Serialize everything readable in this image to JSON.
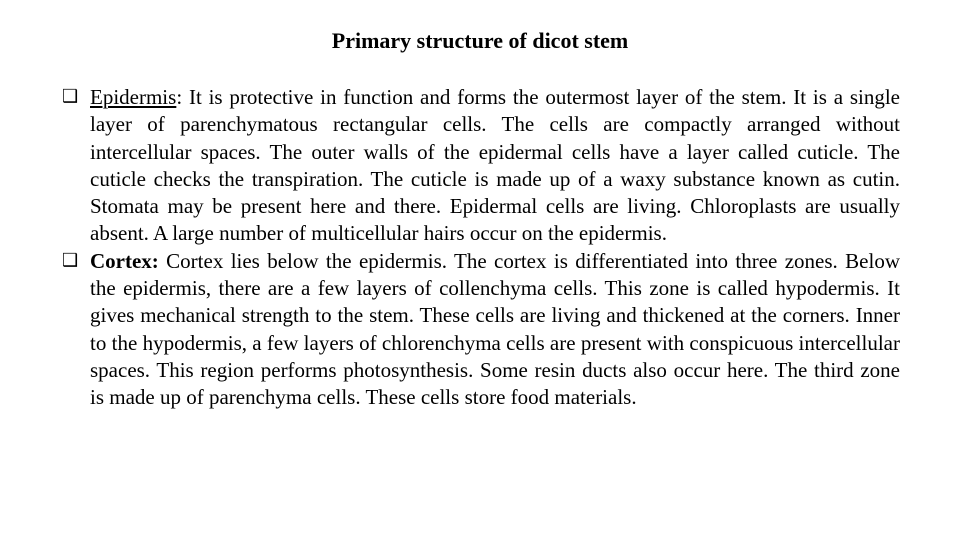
{
  "title": "Primary structure of dicot stem",
  "items": [
    {
      "term": "Epidermis",
      "term_style": "underline",
      "body": ": It is protective in function and forms the outermost layer of the stem. It is a single layer of parenchymatous rectangular cells. The cells are compactly arranged without intercellular spaces. The outer walls of the epidermal cells have a layer called cuticle. The cuticle checks the transpiration. The cuticle is made up of a waxy substance known as cutin. Stomata may be present here and there. Epidermal cells are living. Chloroplasts are usually absent. A large number of multicellular hairs occur on the epidermis."
    },
    {
      "term": "Cortex:",
      "term_style": "bold",
      "body": " Cortex lies below the epidermis. The cortex is differentiated into three zones. Below the epidermis, there are a few layers of collenchyma cells. This zone is called hypodermis. It gives mechanical strength to the stem. These cells are living and thickened at the corners. Inner to the hypodermis, a few layers of chlorenchyma cells are present with conspicuous intercellular spaces. This region performs photosynthesis. Some resin ducts also occur here. The third zone is made up of parenchyma cells. These cells store food materials."
    }
  ],
  "colors": {
    "background": "#ffffff",
    "text": "#000000"
  },
  "typography": {
    "title_fontsize": 22,
    "body_fontsize": 21,
    "font_family": "Times New Roman"
  }
}
